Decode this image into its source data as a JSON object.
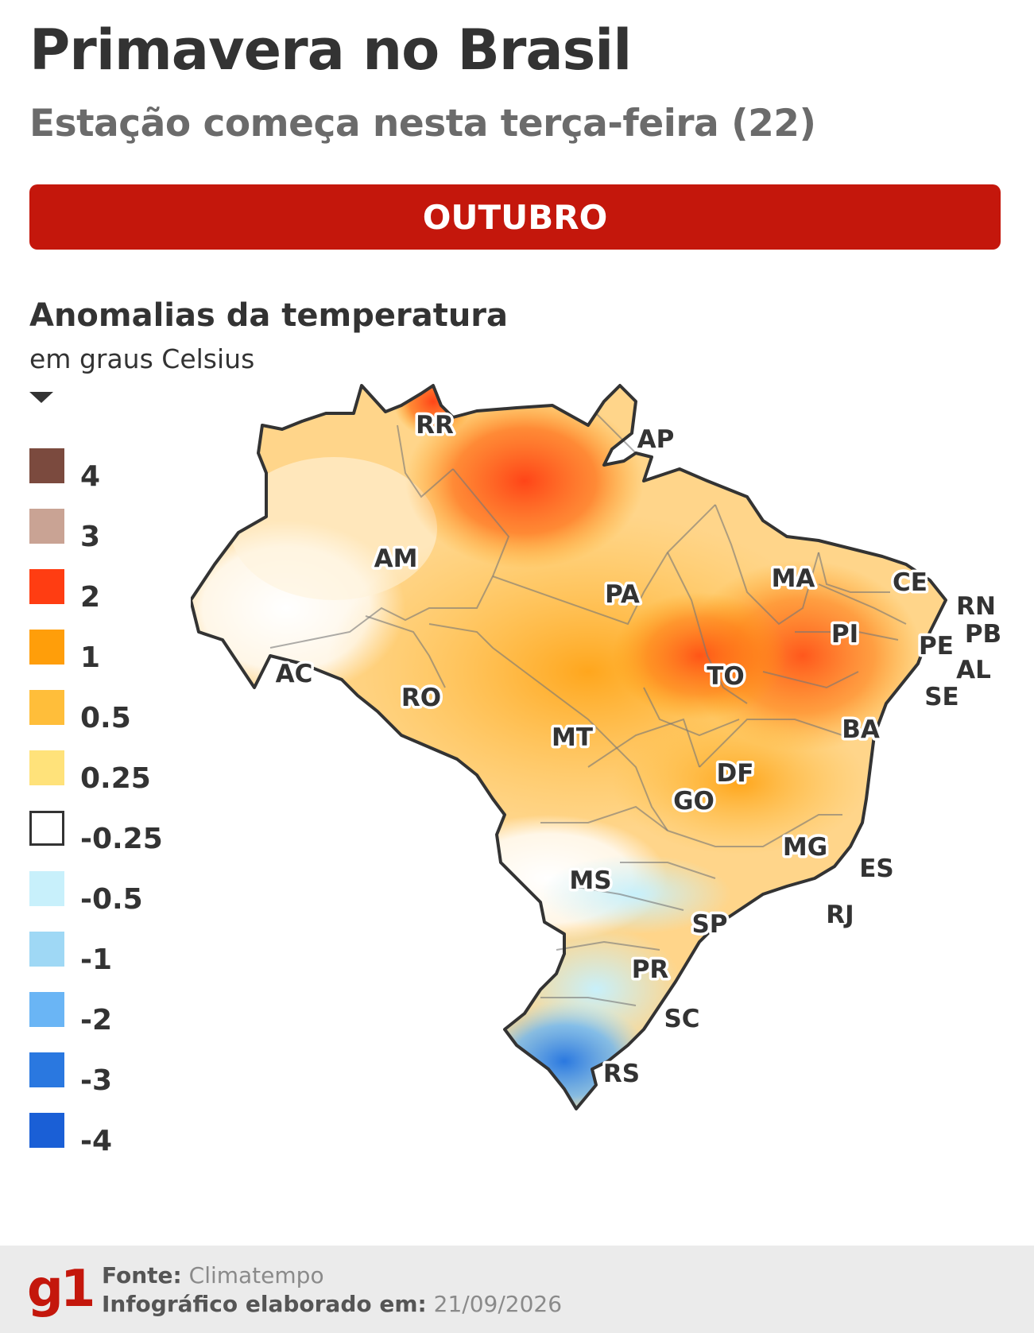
{
  "header": {
    "title": "Primavera no Brasil",
    "subtitle": "Estação começa nesta terça-feira (22)"
  },
  "banner": {
    "month": "OUTUBRO",
    "color": "#c4170c"
  },
  "legend": {
    "title": "Anomalias da temperatura",
    "unit": "em graus Celsius",
    "items": [
      {
        "label": "4",
        "color": "#7b4a3e"
      },
      {
        "label": "3",
        "color": "#c9a394"
      },
      {
        "label": "2",
        "color": "#ff3d12"
      },
      {
        "label": "1",
        "color": "#ff9e0a"
      },
      {
        "label": "0.5",
        "color": "#ffbe3a"
      },
      {
        "label": "0.25",
        "color": "#ffe27a"
      },
      {
        "label": "-0.25",
        "color": "#ffffff"
      },
      {
        "label": "-0.5",
        "color": "#c8f0fb"
      },
      {
        "label": "-1",
        "color": "#9fd8f5"
      },
      {
        "label": "-2",
        "color": "#6ab5f5"
      },
      {
        "label": "-3",
        "color": "#2a78e0"
      },
      {
        "label": "-4",
        "color": "#1a5fd6"
      }
    ]
  },
  "map": {
    "states": [
      "RR",
      "AP",
      "AM",
      "PA",
      "MA",
      "CE",
      "RN",
      "PB",
      "PE",
      "AL",
      "SE",
      "PI",
      "AC",
      "RO",
      "TO",
      "BA",
      "MT",
      "DF",
      "GO",
      "MG",
      "ES",
      "MS",
      "SP",
      "RJ",
      "PR",
      "SC",
      "RS"
    ]
  },
  "footer": {
    "logo": "g1",
    "source_label": "Fonte:",
    "source_value": "Climatempo",
    "date_label": "Infográfico elaborado em:",
    "date_value": "21/09/2026"
  }
}
